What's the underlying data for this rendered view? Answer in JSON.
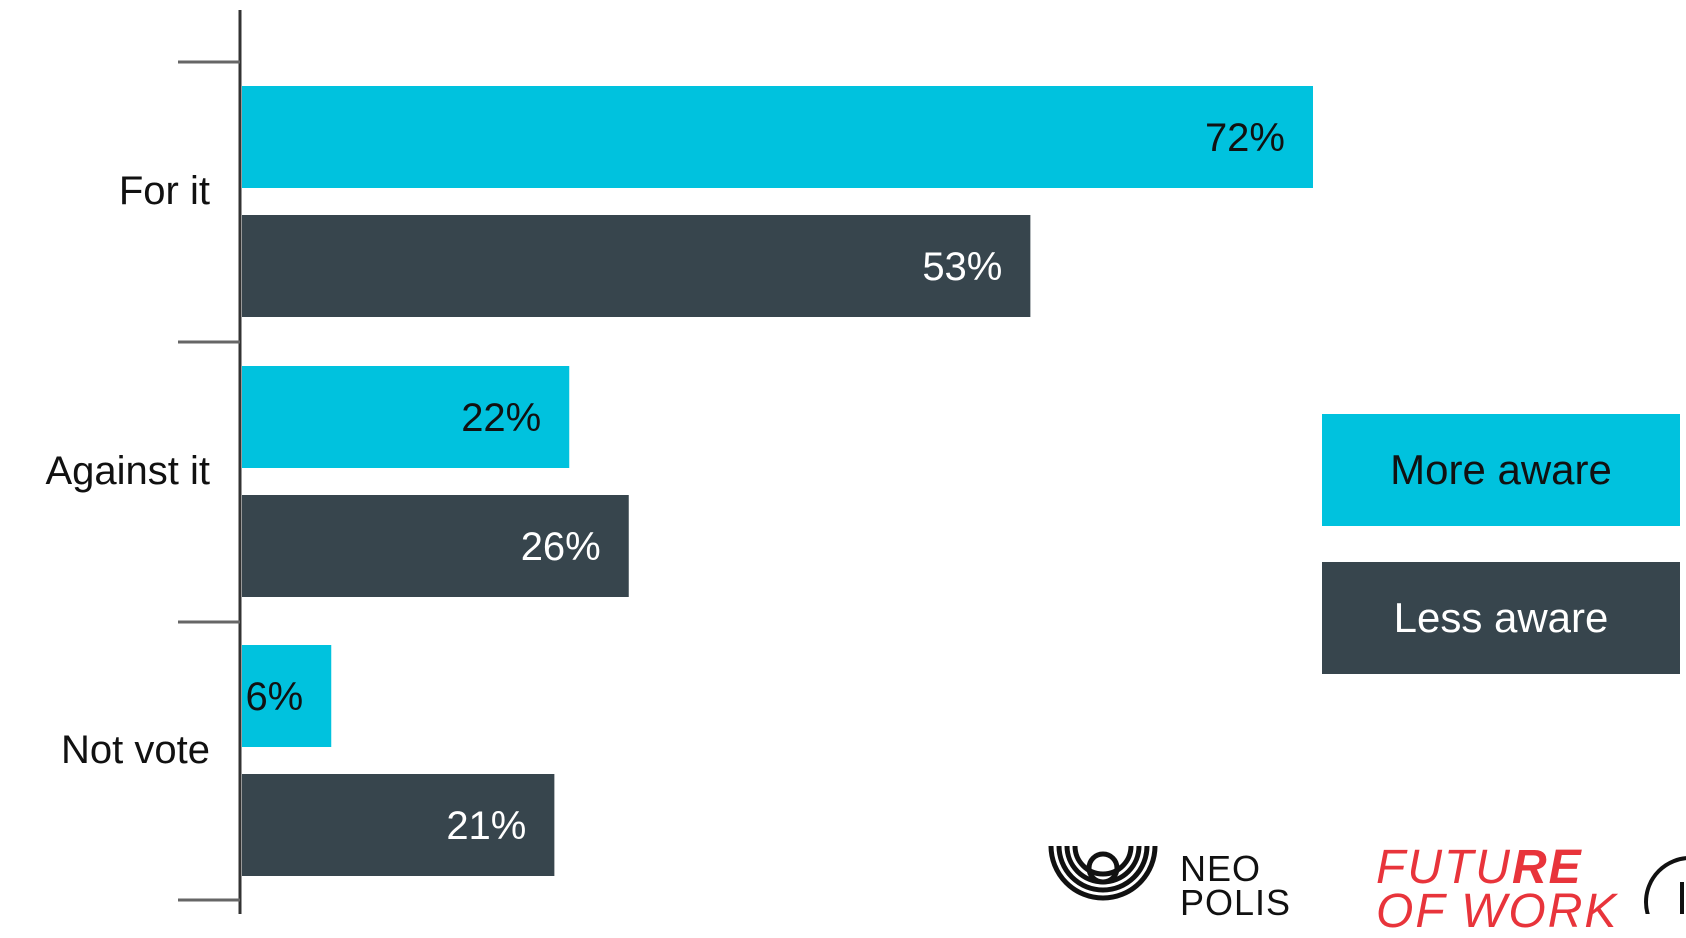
{
  "chart_data": {
    "type": "bar",
    "orientation": "horizontal",
    "categories": [
      "For it",
      "Against it",
      "Not vote"
    ],
    "series": [
      {
        "name": "More aware",
        "values": [
          72,
          22,
          6
        ],
        "color": "#00c2de"
      },
      {
        "name": "Less aware",
        "values": [
          53,
          26,
          21
        ],
        "color": "#37454d"
      }
    ],
    "value_suffix": "%",
    "xlim": [
      0,
      80
    ],
    "grid": false,
    "legend_position": "right"
  },
  "legend": {
    "more_label": "More aware",
    "less_label": "Less aware"
  },
  "logos": {
    "neopolis_line1": "NEO",
    "neopolis_line2": "POLIS",
    "fow_part1": "FUTU",
    "fow_part2": "RE",
    "fow_line2": "OF WORK"
  },
  "colors": {
    "more": "#00c2de",
    "less": "#37454d",
    "axis": "#333333",
    "label_on_light": "#111111",
    "label_on_dark": "#ffffff",
    "brand_red": "#e8343b"
  }
}
